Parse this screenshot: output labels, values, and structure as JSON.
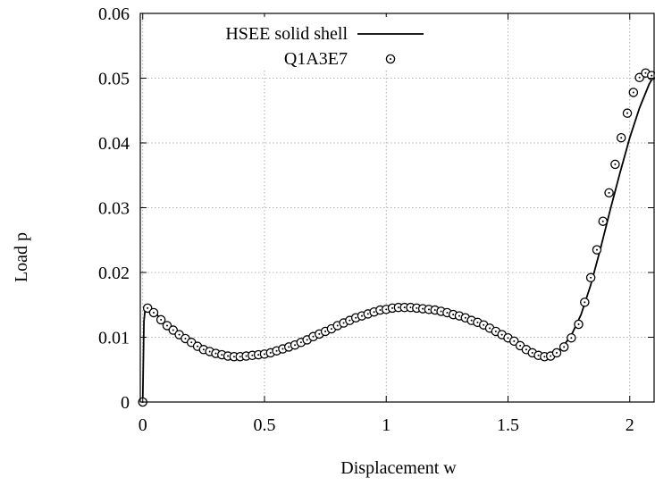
{
  "chart_data": {
    "type": "line",
    "title": "",
    "xlabel": "Displacement w",
    "ylabel": "Load p",
    "xlim": [
      -0.01,
      2.1
    ],
    "ylim": [
      0,
      0.06
    ],
    "grid": true,
    "legend_position": "top-left",
    "x_ticks": [
      {
        "value": 0,
        "label": "0"
      },
      {
        "value": 0.5,
        "label": "0.5"
      },
      {
        "value": 1,
        "label": "1"
      },
      {
        "value": 1.5,
        "label": "1.5"
      },
      {
        "value": 2,
        "label": "2"
      }
    ],
    "y_ticks": [
      {
        "value": 0,
        "label": "0"
      },
      {
        "value": 0.01,
        "label": "0.01"
      },
      {
        "value": 0.02,
        "label": "0.02"
      },
      {
        "value": 0.03,
        "label": "0.03"
      },
      {
        "value": 0.04,
        "label": "0.04"
      },
      {
        "value": 0.05,
        "label": "0.05"
      },
      {
        "value": 0.06,
        "label": "0.06"
      }
    ],
    "series": [
      {
        "name": "HSEE solid shell",
        "style": "line",
        "color": "#000000",
        "x": [
          0,
          0.005,
          0.01,
          0.02,
          0.06,
          0.12,
          0.2,
          0.3,
          0.4,
          0.5,
          0.6,
          0.7,
          0.8,
          0.9,
          1.0,
          1.1,
          1.2,
          1.3,
          1.4,
          1.5,
          1.55,
          1.6,
          1.65,
          1.68,
          1.72,
          1.76,
          1.8,
          1.84,
          1.88,
          1.92,
          1.96,
          2.0,
          2.04,
          2.08,
          2.1
        ],
        "y": [
          0,
          0.0125,
          0.0143,
          0.0145,
          0.0134,
          0.0112,
          0.0091,
          0.0076,
          0.007,
          0.0074,
          0.0085,
          0.0101,
          0.0118,
          0.0133,
          0.0143,
          0.0146,
          0.0142,
          0.0133,
          0.0119,
          0.0099,
          0.0087,
          0.0076,
          0.007,
          0.0071,
          0.0083,
          0.0103,
          0.0135,
          0.0181,
          0.0237,
          0.0297,
          0.0354,
          0.0408,
          0.0454,
          0.0491,
          0.0504
        ]
      },
      {
        "name": "Q1A3E7",
        "style": "markers",
        "marker": "circle-dot",
        "color": "#000000",
        "x": [
          0,
          0.02,
          0.045,
          0.075,
          0.1,
          0.125,
          0.15,
          0.175,
          0.2,
          0.225,
          0.25,
          0.275,
          0.3,
          0.325,
          0.35,
          0.375,
          0.4,
          0.425,
          0.45,
          0.475,
          0.5,
          0.525,
          0.55,
          0.575,
          0.6,
          0.625,
          0.65,
          0.675,
          0.7,
          0.725,
          0.75,
          0.775,
          0.8,
          0.825,
          0.85,
          0.875,
          0.9,
          0.925,
          0.95,
          0.975,
          1.0,
          1.025,
          1.05,
          1.075,
          1.1,
          1.125,
          1.15,
          1.175,
          1.2,
          1.225,
          1.25,
          1.275,
          1.3,
          1.325,
          1.35,
          1.375,
          1.4,
          1.425,
          1.45,
          1.475,
          1.5,
          1.525,
          1.55,
          1.575,
          1.6,
          1.625,
          1.65,
          1.675,
          1.7,
          1.73,
          1.76,
          1.79,
          1.815,
          1.84,
          1.865,
          1.89,
          1.915,
          1.94,
          1.965,
          1.99,
          2.015,
          2.04,
          2.065,
          2.09
        ],
        "y": [
          0,
          0.0145,
          0.0138,
          0.0127,
          0.0118,
          0.0111,
          0.0104,
          0.0098,
          0.0092,
          0.0086,
          0.0081,
          0.0078,
          0.0075,
          0.0073,
          0.0071,
          0.007,
          0.007,
          0.0071,
          0.0072,
          0.0073,
          0.0074,
          0.0076,
          0.0079,
          0.0082,
          0.0085,
          0.0088,
          0.0092,
          0.0096,
          0.0101,
          0.0105,
          0.0109,
          0.0113,
          0.0118,
          0.0122,
          0.0126,
          0.013,
          0.0133,
          0.0136,
          0.0139,
          0.0142,
          0.0143,
          0.0145,
          0.0146,
          0.0146,
          0.0146,
          0.0145,
          0.0144,
          0.0143,
          0.0142,
          0.014,
          0.0138,
          0.0135,
          0.0133,
          0.013,
          0.0126,
          0.0123,
          0.0119,
          0.0114,
          0.0109,
          0.0104,
          0.0099,
          0.0094,
          0.0087,
          0.0081,
          0.0076,
          0.0072,
          0.007,
          0.0071,
          0.0076,
          0.0085,
          0.0099,
          0.012,
          0.0154,
          0.0192,
          0.0235,
          0.0279,
          0.0323,
          0.0367,
          0.0408,
          0.0446,
          0.0478,
          0.0501,
          0.0508,
          0.0504
        ]
      }
    ]
  }
}
